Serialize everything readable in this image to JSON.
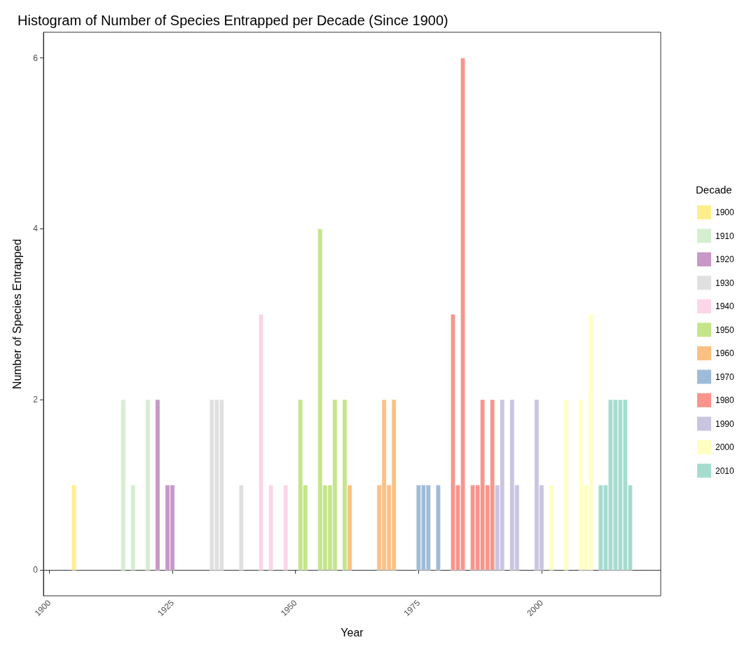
{
  "chart_data": {
    "type": "bar",
    "title": "Histogram of Number of Species Entrapped per Decade (Since 1900)",
    "xlabel": "Year",
    "ylabel": "Number of Species Entrapped",
    "legend_title": "Decade",
    "legend": "right",
    "xlim": [
      1898.8,
      2024.2
    ],
    "xticks": [
      1900,
      1925,
      1950,
      1975,
      2000
    ],
    "ylim": [
      -0.3,
      6.3
    ],
    "yticks": [
      0,
      2,
      4,
      6
    ],
    "series": [
      {
        "name": "1900",
        "color": "#fdee8c",
        "x": [
          1905
        ],
        "values": [
          1
        ]
      },
      {
        "name": "1910",
        "color": "#d5eed0",
        "x": [
          1915,
          1917,
          1920
        ],
        "values": [
          2,
          1,
          2
        ]
      },
      {
        "name": "1920",
        "color": "#c797c8",
        "x": [
          1922,
          1924,
          1925
        ],
        "values": [
          2,
          1,
          1
        ]
      },
      {
        "name": "1930",
        "color": "#e0e0e0",
        "x": [
          1933,
          1934,
          1935,
          1939
        ],
        "values": [
          2,
          2,
          2,
          1
        ]
      },
      {
        "name": "1940",
        "color": "#fbd5e8",
        "x": [
          1943,
          1945,
          1948
        ],
        "values": [
          3,
          1,
          1
        ]
      },
      {
        "name": "1950",
        "color": "#c4e58a",
        "x": [
          1951,
          1952,
          1955,
          1956,
          1957,
          1958,
          1960
        ],
        "values": [
          2,
          1,
          4,
          1,
          1,
          2,
          2
        ]
      },
      {
        "name": "1960",
        "color": "#fcc083",
        "x": [
          1961,
          1967,
          1968,
          1969,
          1970
        ],
        "values": [
          1,
          1,
          2,
          1,
          2
        ]
      },
      {
        "name": "1970",
        "color": "#9dbcd9",
        "x": [
          1975,
          1976,
          1977,
          1979
        ],
        "values": [
          1,
          1,
          1,
          1
        ]
      },
      {
        "name": "1980",
        "color": "#f9958b",
        "x": [
          1982,
          1983,
          1984,
          1986,
          1987,
          1988,
          1989,
          1990
        ],
        "values": [
          3,
          1,
          6,
          1,
          1,
          2,
          1,
          2
        ]
      },
      {
        "name": "1990",
        "color": "#c9c5e1",
        "x": [
          1991,
          1992,
          1994,
          1995,
          1999,
          2000
        ],
        "values": [
          1,
          2,
          2,
          1,
          2,
          1
        ]
      },
      {
        "name": "2000",
        "color": "#ffffc2",
        "x": [
          2002,
          2005,
          2008,
          2009,
          2010
        ],
        "values": [
          1,
          2,
          2,
          1,
          3
        ]
      },
      {
        "name": "2010",
        "color": "#a5dccf",
        "x": [
          2012,
          2013,
          2014,
          2015,
          2016,
          2017,
          2018
        ],
        "values": [
          1,
          1,
          2,
          2,
          2,
          2,
          1
        ]
      }
    ]
  }
}
